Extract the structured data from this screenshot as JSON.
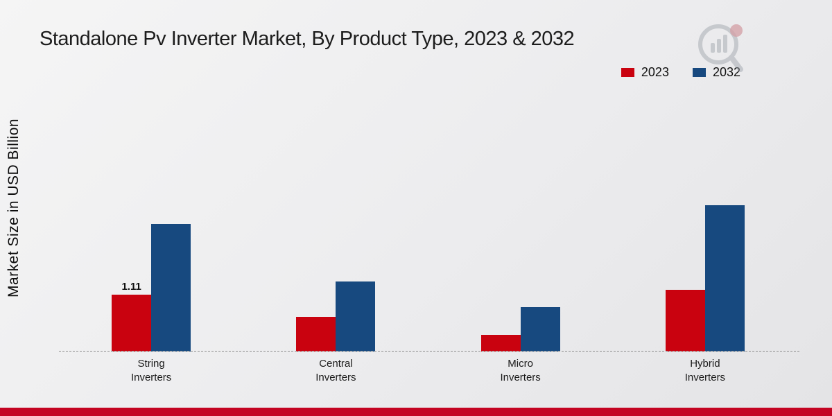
{
  "title": "Standalone Pv Inverter Market, By Product Type, 2023 & 2032",
  "ylabel": "Market Size in USD Billion",
  "colors": {
    "series_2023": "#c9020f",
    "series_2032": "#17497f",
    "footer_bar": "#c40422",
    "background": "#ededee"
  },
  "legend": [
    {
      "label": "2023",
      "color": "#c9020f"
    },
    {
      "label": "2032",
      "color": "#17497f"
    }
  ],
  "chart_data": {
    "type": "bar",
    "title": "Standalone Pv Inverter Market, By Product Type, 2023 & 2032",
    "ylabel": "Market Size in USD Billion",
    "xlabel": "",
    "categories": [
      "String Inverters",
      "Central Inverters",
      "Micro Inverters",
      "Hybrid Inverters"
    ],
    "series": [
      {
        "name": "2023",
        "color": "#c9020f",
        "values": [
          1.11,
          0.68,
          0.33,
          1.2
        ]
      },
      {
        "name": "2032",
        "color": "#17497f",
        "values": [
          2.49,
          1.37,
          0.87,
          2.85
        ]
      }
    ],
    "annotations": [
      {
        "series": "2023",
        "category": "String Inverters",
        "text": "1.11"
      }
    ],
    "ylim": [
      0,
      3.2
    ],
    "grid": false,
    "legend_position": "top-right",
    "baseline_style": "dashed"
  }
}
